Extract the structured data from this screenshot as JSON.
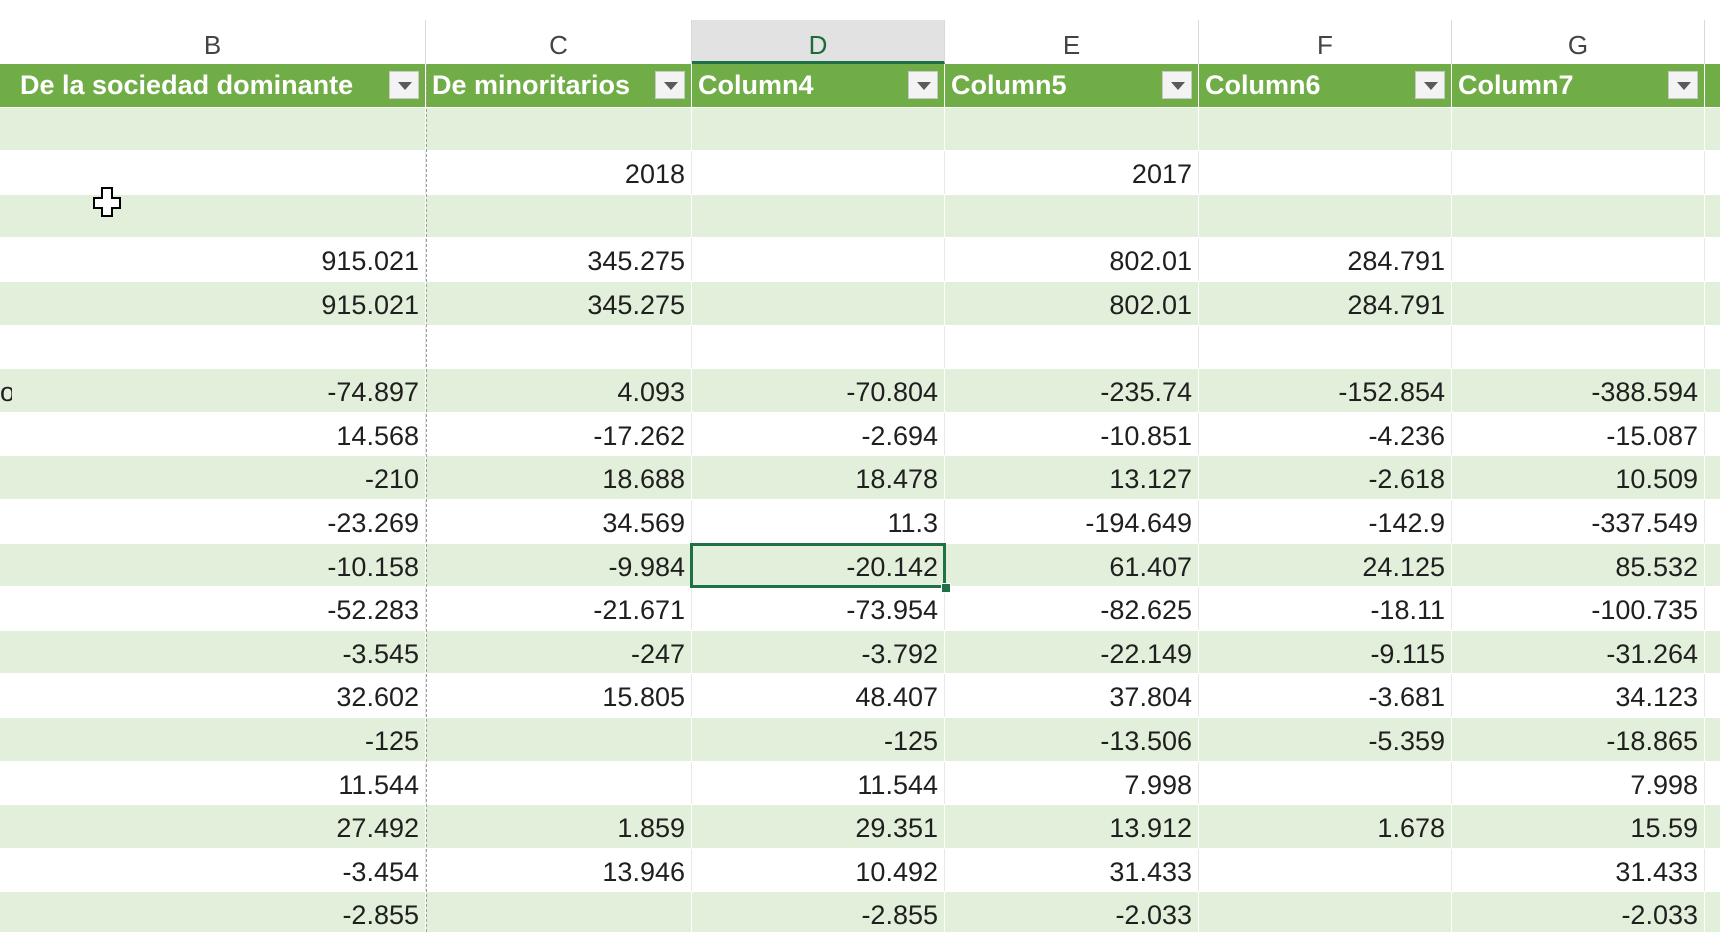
{
  "column_letters": [
    "B",
    "C",
    "D",
    "E",
    "F",
    "G"
  ],
  "selected_column": "D",
  "table_headers": [
    "De la sociedad dominante",
    "De minoritarios",
    "Column4",
    "Column5",
    "Column6",
    "Column7"
  ],
  "left_fragment": "o",
  "rows": [
    [
      "",
      "",
      "",
      "",
      "",
      ""
    ],
    [
      "",
      "2018",
      "",
      "2017",
      "",
      ""
    ],
    [
      "",
      "",
      "",
      "",
      "",
      ""
    ],
    [
      "915.021",
      "345.275",
      "",
      "802.01",
      "284.791",
      ""
    ],
    [
      "915.021",
      "345.275",
      "",
      "802.01",
      "284.791",
      ""
    ],
    [
      "",
      "",
      "",
      "",
      "",
      ""
    ],
    [
      "-74.897",
      "4.093",
      "-70.804",
      "-235.74",
      "-152.854",
      "-388.594"
    ],
    [
      "14.568",
      "-17.262",
      "-2.694",
      "-10.851",
      "-4.236",
      "-15.087"
    ],
    [
      "-210",
      "18.688",
      "18.478",
      "13.127",
      "-2.618",
      "10.509"
    ],
    [
      "-23.269",
      "34.569",
      "11.3",
      "-194.649",
      "-142.9",
      "-337.549"
    ],
    [
      "-10.158",
      "-9.984",
      "-20.142",
      "61.407",
      "24.125",
      "85.532"
    ],
    [
      "-52.283",
      "-21.671",
      "-73.954",
      "-82.625",
      "-18.11",
      "-100.735"
    ],
    [
      "-3.545",
      "-247",
      "-3.792",
      "-22.149",
      "-9.115",
      "-31.264"
    ],
    [
      "32.602",
      "15.805",
      "48.407",
      "37.804",
      "-3.681",
      "34.123"
    ],
    [
      "-125",
      "",
      "-125",
      "-13.506",
      "-5.359",
      "-18.865"
    ],
    [
      "11.544",
      "",
      "11.544",
      "7.998",
      "",
      "7.998"
    ],
    [
      "27.492",
      "1.859",
      "29.351",
      "13.912",
      "1.678",
      "15.59"
    ],
    [
      "-3.454",
      "13.946",
      "10.492",
      "31.433",
      "",
      "31.433"
    ],
    [
      "-2.855",
      "",
      "-2.855",
      "-2.033",
      "",
      "-2.033"
    ]
  ],
  "colors": {
    "header_green": "#70ad47",
    "band_light_green": "#e2efda",
    "selection_green": "#1e7145"
  },
  "cursor_icon": "cell-select-cross-cursor-icon"
}
